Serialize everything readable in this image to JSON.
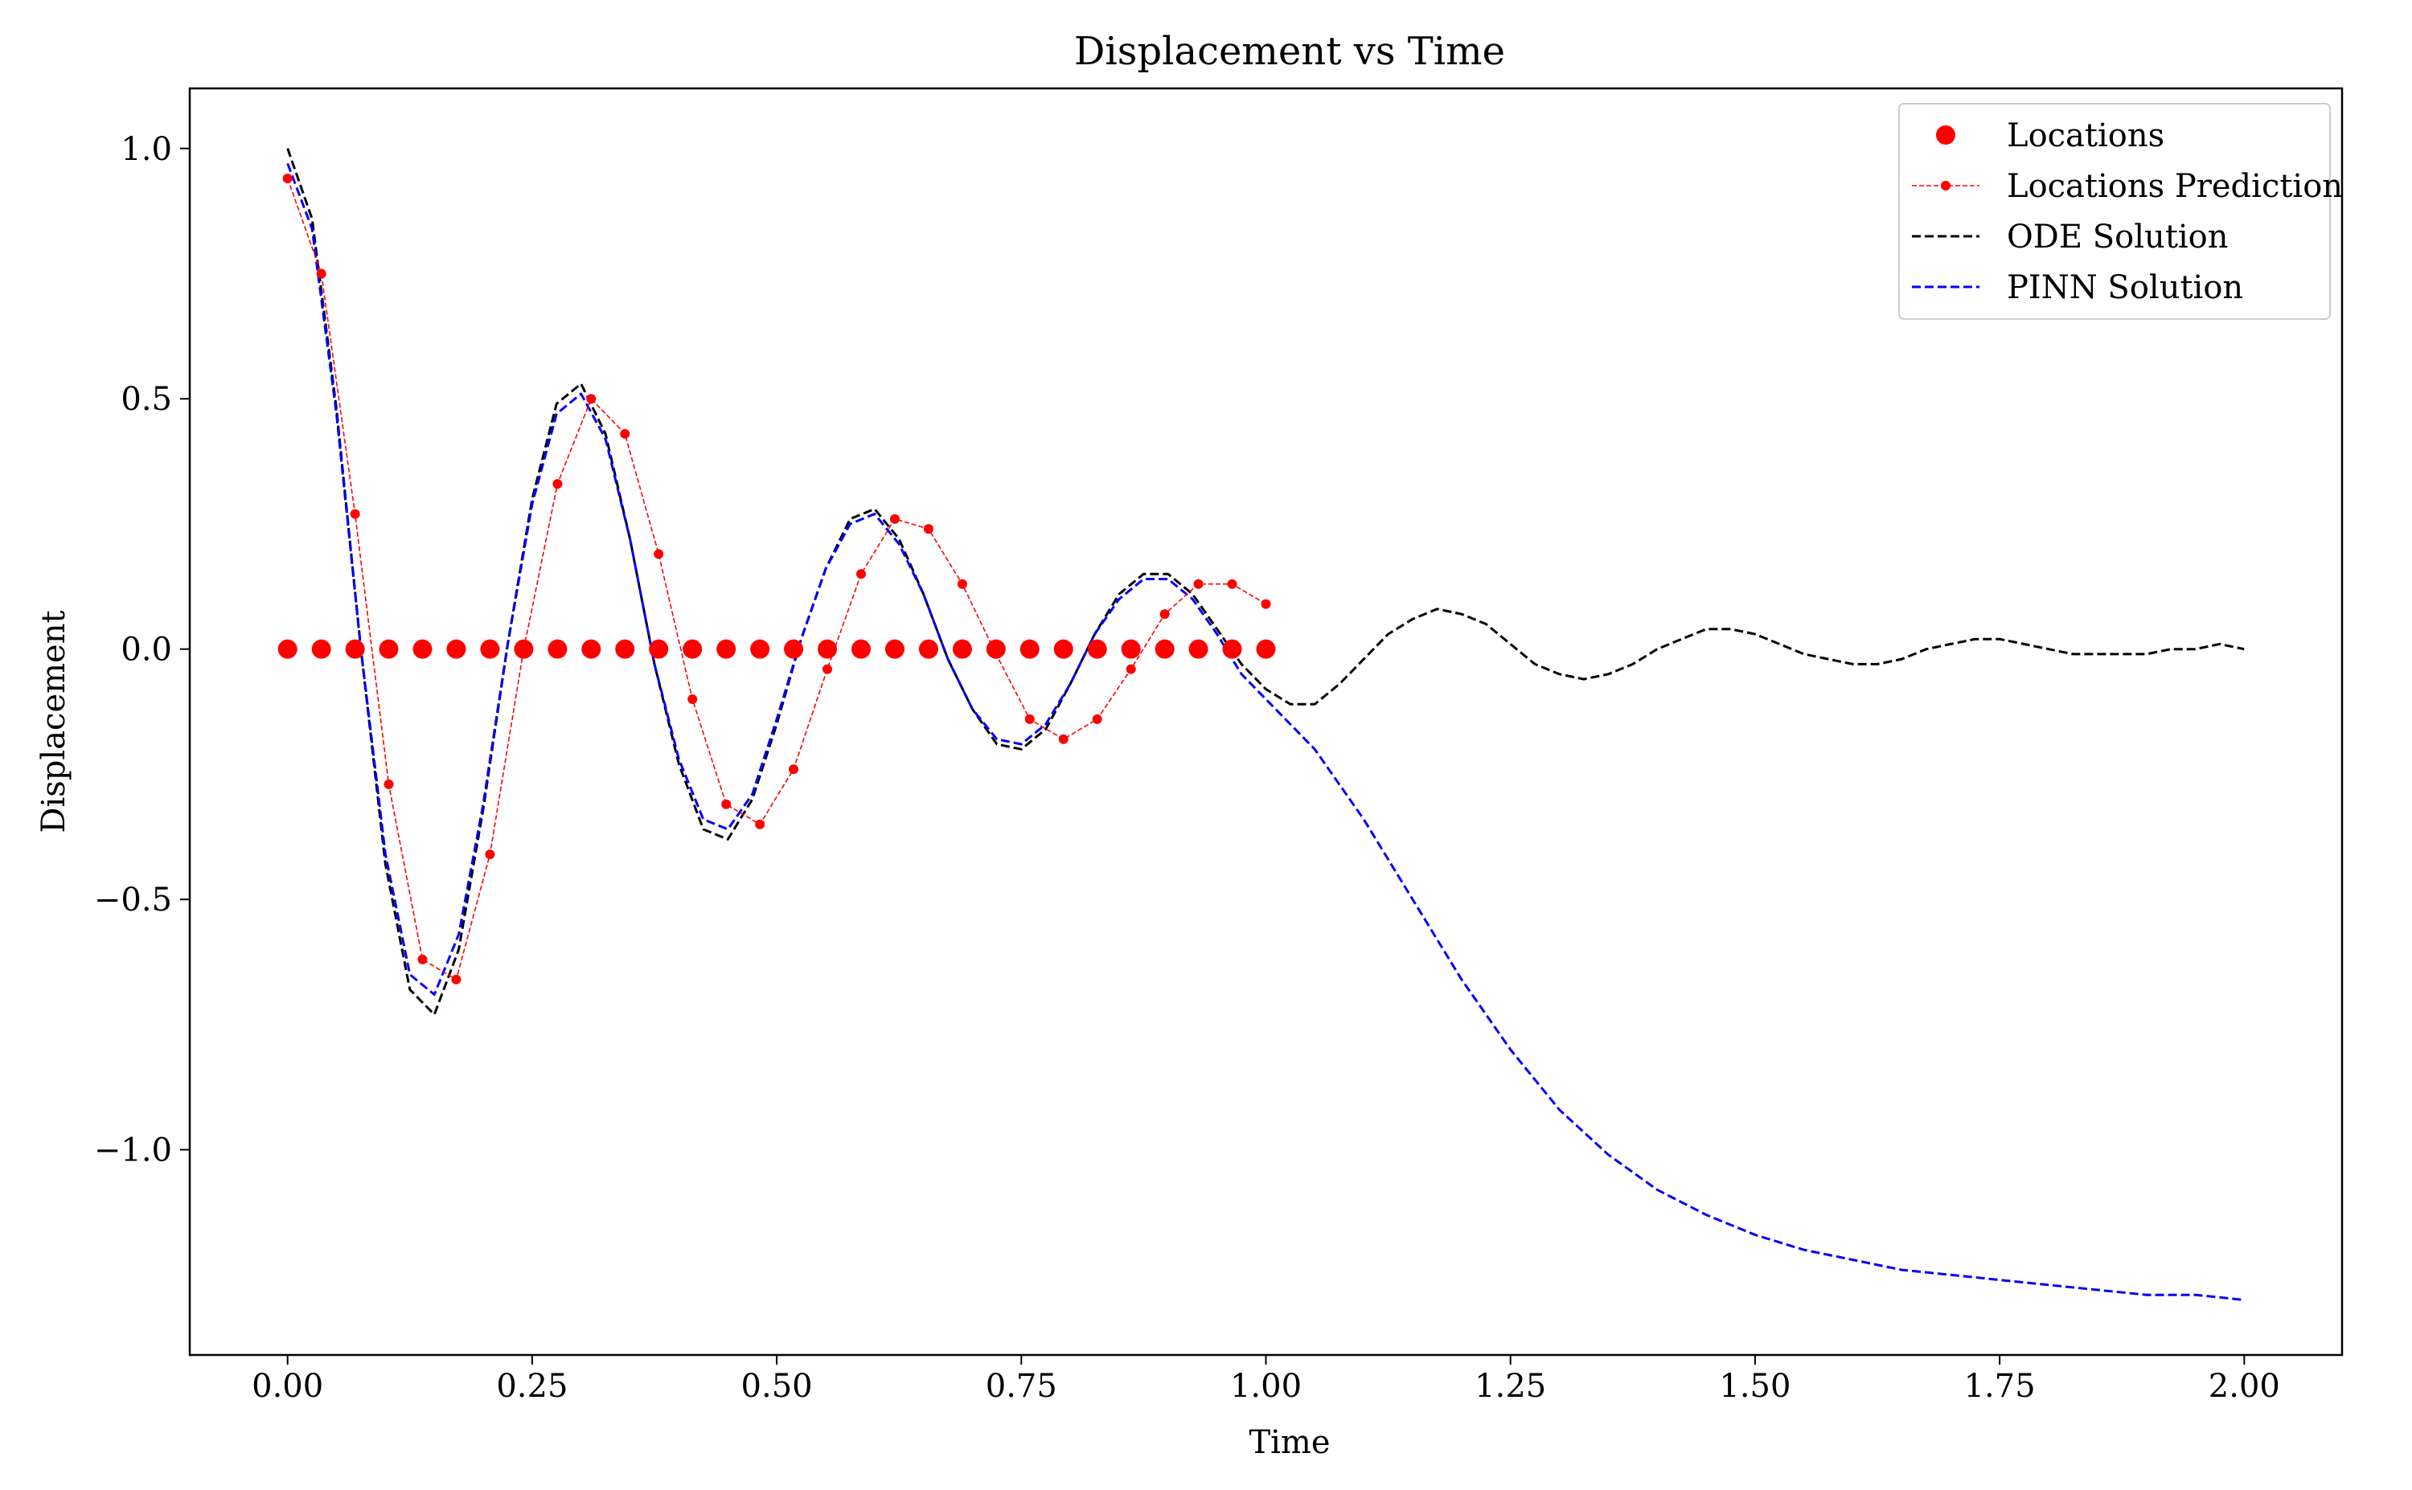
{
  "chart_data": {
    "type": "line",
    "title": "Displacement vs Time",
    "xlabel": "Time",
    "ylabel": "Displacement",
    "xlim": [
      -0.1,
      2.1
    ],
    "ylim": [
      -1.41,
      1.12
    ],
    "xticks": [
      "0.00",
      "0.25",
      "0.50",
      "0.75",
      "1.00",
      "1.25",
      "1.50",
      "1.75",
      "2.00"
    ],
    "yticks": [
      "1.0",
      "0.5",
      "0.0",
      "−0.5",
      "−1.0"
    ],
    "xtick_values": [
      0,
      0.25,
      0.5,
      0.75,
      1.0,
      1.25,
      1.5,
      1.75,
      2.0
    ],
    "ytick_values": [
      1.0,
      0.5,
      0.0,
      -0.5,
      -1.0
    ],
    "grid": false,
    "legend_position": "top-right",
    "series": [
      {
        "name": "Locations",
        "style": "markers",
        "color": "#ff0000",
        "x": [
          0.0,
          0.0345,
          0.069,
          0.1034,
          0.1379,
          0.1724,
          0.2069,
          0.2414,
          0.2759,
          0.3103,
          0.3448,
          0.3793,
          0.4138,
          0.4483,
          0.4828,
          0.5172,
          0.5517,
          0.5862,
          0.6207,
          0.6552,
          0.6897,
          0.7241,
          0.7586,
          0.7931,
          0.8276,
          0.8621,
          0.8966,
          0.931,
          0.9655,
          1.0
        ],
        "y": [
          0,
          0,
          0,
          0,
          0,
          0,
          0,
          0,
          0,
          0,
          0,
          0,
          0,
          0,
          0,
          0,
          0,
          0,
          0,
          0,
          0,
          0,
          0,
          0,
          0,
          0,
          0,
          0,
          0,
          0
        ]
      },
      {
        "name": "Locations Prediction",
        "style": "dashed-line-with-markers",
        "color": "#ff0000",
        "x": [
          0.0,
          0.0345,
          0.069,
          0.1034,
          0.1379,
          0.1724,
          0.2069,
          0.2414,
          0.2759,
          0.3103,
          0.3448,
          0.3793,
          0.4138,
          0.4483,
          0.4828,
          0.5172,
          0.5517,
          0.5862,
          0.6207,
          0.6552,
          0.6897,
          0.7241,
          0.7586,
          0.7931,
          0.8276,
          0.8621,
          0.8966,
          0.931,
          0.9655,
          1.0
        ],
        "y": [
          0.94,
          0.75,
          0.27,
          -0.27,
          -0.62,
          -0.66,
          -0.41,
          0.0,
          0.33,
          0.5,
          0.43,
          0.19,
          -0.1,
          -0.31,
          -0.35,
          -0.24,
          -0.04,
          0.15,
          0.26,
          0.24,
          0.13,
          -0.01,
          -0.14,
          -0.18,
          -0.14,
          -0.04,
          0.07,
          0.13,
          0.13,
          0.09
        ]
      },
      {
        "name": "ODE Solution",
        "style": "dashed-line",
        "color": "#000000",
        "x": [
          0.0,
          0.025,
          0.05,
          0.075,
          0.1,
          0.125,
          0.15,
          0.175,
          0.2,
          0.225,
          0.25,
          0.275,
          0.3,
          0.325,
          0.35,
          0.375,
          0.4,
          0.425,
          0.45,
          0.475,
          0.5,
          0.525,
          0.55,
          0.575,
          0.6,
          0.625,
          0.65,
          0.675,
          0.7,
          0.725,
          0.75,
          0.775,
          0.8,
          0.825,
          0.85,
          0.875,
          0.9,
          0.925,
          0.95,
          0.975,
          1.0,
          1.025,
          1.05,
          1.075,
          1.1,
          1.125,
          1.15,
          1.175,
          1.2,
          1.225,
          1.25,
          1.275,
          1.3,
          1.325,
          1.35,
          1.375,
          1.4,
          1.425,
          1.45,
          1.475,
          1.5,
          1.525,
          1.55,
          1.575,
          1.6,
          1.625,
          1.65,
          1.675,
          1.7,
          1.725,
          1.75,
          1.775,
          1.8,
          1.825,
          1.85,
          1.875,
          1.9,
          1.925,
          1.95,
          1.975,
          2.0
        ],
        "y": [
          1.0,
          0.86,
          0.48,
          0.0,
          -0.43,
          -0.68,
          -0.73,
          -0.6,
          -0.32,
          0.01,
          0.3,
          0.49,
          0.53,
          0.43,
          0.22,
          -0.03,
          -0.23,
          -0.36,
          -0.38,
          -0.3,
          -0.15,
          0.02,
          0.16,
          0.26,
          0.28,
          0.22,
          0.11,
          -0.02,
          -0.12,
          -0.19,
          -0.2,
          -0.16,
          -0.07,
          0.03,
          0.11,
          0.15,
          0.15,
          0.11,
          0.04,
          -0.03,
          -0.08,
          -0.11,
          -0.11,
          -0.07,
          -0.02,
          0.03,
          0.06,
          0.08,
          0.07,
          0.05,
          0.01,
          -0.03,
          -0.05,
          -0.06,
          -0.05,
          -0.03,
          0.0,
          0.02,
          0.04,
          0.04,
          0.03,
          0.01,
          -0.01,
          -0.02,
          -0.03,
          -0.03,
          -0.02,
          0.0,
          0.01,
          0.02,
          0.02,
          0.01,
          0.0,
          -0.01,
          -0.01,
          -0.01,
          -0.01,
          0.0,
          0.0,
          0.01,
          0.0
        ]
      },
      {
        "name": "PINN Solution",
        "style": "dashed-line",
        "color": "#0000ff",
        "x": [
          0.0,
          0.025,
          0.05,
          0.075,
          0.1,
          0.125,
          0.15,
          0.175,
          0.2,
          0.225,
          0.25,
          0.275,
          0.3,
          0.325,
          0.35,
          0.375,
          0.4,
          0.425,
          0.45,
          0.475,
          0.5,
          0.525,
          0.55,
          0.575,
          0.6,
          0.625,
          0.65,
          0.675,
          0.7,
          0.725,
          0.75,
          0.775,
          0.8,
          0.825,
          0.85,
          0.875,
          0.9,
          0.925,
          0.95,
          0.975,
          1.0,
          1.05,
          1.1,
          1.15,
          1.2,
          1.25,
          1.3,
          1.35,
          1.4,
          1.45,
          1.5,
          1.55,
          1.6,
          1.65,
          1.7,
          1.75,
          1.8,
          1.85,
          1.9,
          1.95,
          2.0
        ],
        "y": [
          0.97,
          0.84,
          0.47,
          0.0,
          -0.41,
          -0.65,
          -0.69,
          -0.57,
          -0.31,
          0.01,
          0.29,
          0.47,
          0.51,
          0.42,
          0.22,
          -0.03,
          -0.22,
          -0.34,
          -0.36,
          -0.29,
          -0.14,
          0.02,
          0.16,
          0.25,
          0.27,
          0.21,
          0.11,
          -0.02,
          -0.12,
          -0.18,
          -0.19,
          -0.15,
          -0.07,
          0.03,
          0.1,
          0.14,
          0.14,
          0.1,
          0.03,
          -0.05,
          -0.1,
          -0.2,
          -0.34,
          -0.5,
          -0.66,
          -0.8,
          -0.92,
          -1.01,
          -1.08,
          -1.13,
          -1.17,
          -1.2,
          -1.22,
          -1.24,
          -1.25,
          -1.26,
          -1.27,
          -1.28,
          -1.29,
          -1.29,
          -1.3
        ]
      }
    ]
  }
}
